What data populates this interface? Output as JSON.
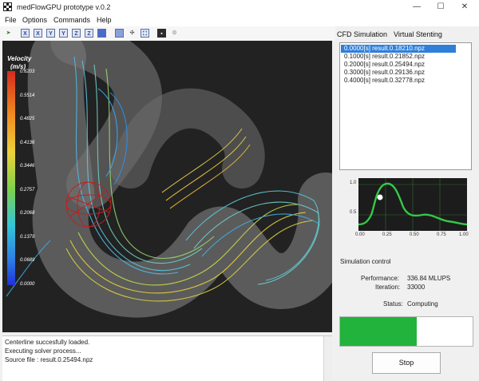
{
  "window": {
    "title": "medFlowGPU prototype v.0.2",
    "minimize": "—",
    "maximize": "☐",
    "close": "✕"
  },
  "menu": [
    "File",
    "Options",
    "Commands",
    "Help"
  ],
  "toolbar": {
    "icons": [
      "run-icon",
      "view-x-icon",
      "view-x-neg-icon",
      "view-y-icon",
      "view-y-neg-icon",
      "view-z-icon",
      "view-z-neg-icon",
      "cube-icon",
      "layers-icon",
      "move-icon",
      "fit-icon",
      "save-icon",
      "settings-icon"
    ],
    "labels": [
      "",
      "X",
      "X",
      "Y",
      "Y",
      "Z",
      "Z",
      "",
      "",
      "",
      "",
      "",
      ""
    ]
  },
  "colorbar": {
    "title": "Velocity",
    "unit": "(m/s)",
    "ticks": [
      "0.6203",
      "0.5514",
      "0.4825",
      "0.4136",
      "0.3446",
      "0.2757",
      "0.2068",
      "0.1379",
      "0.0689",
      "0.0000"
    ]
  },
  "console": {
    "lines": [
      "Centerline succesfully loaded.",
      "Executing solver process...",
      "Source file : result.0.25494.npz"
    ]
  },
  "tabs": [
    "CFD Simulation",
    "Virtual Stenting"
  ],
  "files": [
    "0.0000[s]  result.0.18210.npz",
    "0.1000[s]  result.0.21852.npz",
    "0.2000[s]  result.0.25494.npz",
    "0.3000[s]  result.0.29136.npz",
    "0.4000[s]  result.0.32778.npz"
  ],
  "selected_file_index": 0,
  "waveform": {
    "y_ticks": [
      "1.0",
      "0.5"
    ],
    "x_ticks": [
      "0.00",
      "0.25",
      "0.50",
      "0.75",
      "1.00"
    ],
    "current_time": 0.2,
    "current_value": 0.55
  },
  "simulation": {
    "title": "Simulation control",
    "performance_label": "Performance:",
    "performance_value": "336.84 MLUPS",
    "iteration_label": "Iteration:",
    "iteration_value": "33000",
    "status_label": "Status:",
    "status_value": "Computing",
    "progress": 0.58,
    "stop_label": "Stop"
  },
  "colors": {
    "selection": "#2f7fd9",
    "progress": "#22b33c",
    "viewport_bg": "#222222"
  }
}
